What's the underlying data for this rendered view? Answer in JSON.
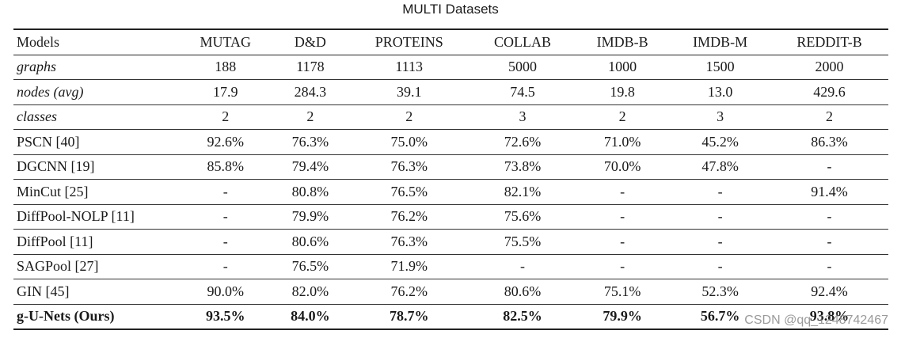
{
  "caption": "MULTI Datasets",
  "table": {
    "headers": [
      "Models",
      "MUTAG",
      "D&D",
      "PROTEINS",
      "COLLAB",
      "IMDB-B",
      "IMDB-M",
      "REDDIT-B"
    ],
    "stat_rows": [
      [
        "graphs",
        "188",
        "1178",
        "1113",
        "5000",
        "1000",
        "1500",
        "2000"
      ],
      [
        "nodes (avg)",
        "17.9",
        "284.3",
        "39.1",
        "74.5",
        "19.8",
        "13.0",
        "429.6"
      ],
      [
        "classes",
        "2",
        "2",
        "2",
        "3",
        "2",
        "3",
        "2"
      ]
    ],
    "result_rows": [
      [
        "PSCN [40]",
        "92.6%",
        "76.3%",
        "75.0%",
        "72.6%",
        "71.0%",
        "45.2%",
        "86.3%"
      ],
      [
        "DGCNN [19]",
        "85.8%",
        "79.4%",
        "76.3%",
        "73.8%",
        "70.0%",
        "47.8%",
        "-"
      ],
      [
        "MinCut [25]",
        "-",
        "80.8%",
        "76.5%",
        "82.1%",
        "-",
        "-",
        "91.4%"
      ],
      [
        "DiffPool-NOLP [11]",
        "-",
        "79.9%",
        "76.2%",
        "75.6%",
        "-",
        "-",
        "-"
      ],
      [
        "DiffPool [11]",
        "-",
        "80.6%",
        "76.3%",
        "75.5%",
        "-",
        "-",
        "-"
      ],
      [
        "SAGPool [27]",
        "-",
        "76.5%",
        "71.9%",
        "-",
        "-",
        "-",
        "-"
      ],
      [
        "GIN [45]",
        "90.0%",
        "82.0%",
        "76.2%",
        "80.6%",
        "75.1%",
        "52.3%",
        "92.4%"
      ]
    ],
    "ours_row": [
      "g-U-Nets (Ours)",
      "93.5%",
      "84.0%",
      "78.7%",
      "82.5%",
      "79.9%",
      "56.7%",
      "93.8%"
    ]
  },
  "watermark": "CSDN @qq_1248742467"
}
